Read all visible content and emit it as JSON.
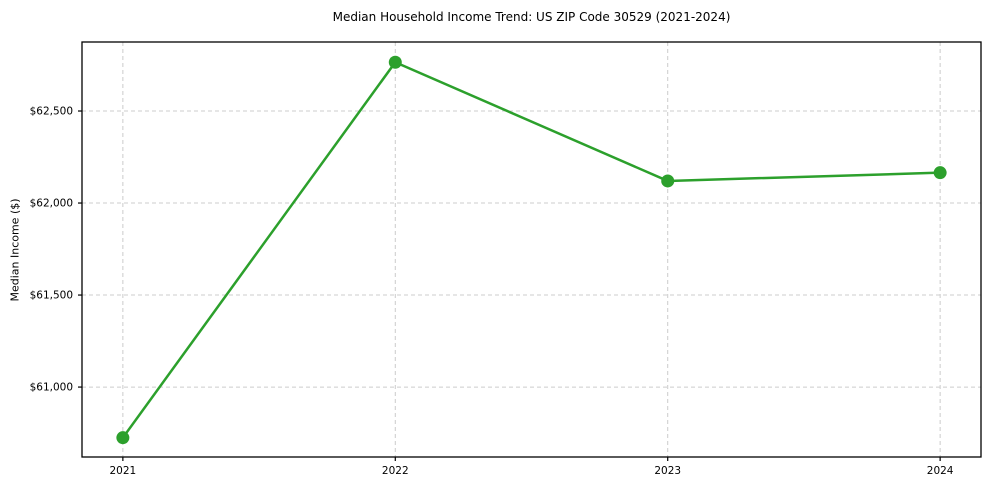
{
  "chart_data": {
    "type": "line",
    "title": "Median Household Income Trend: US ZIP Code 30529 (2021-2024)",
    "xlabel": "",
    "ylabel": "Median Income ($)",
    "x": [
      2021,
      2022,
      2023,
      2024
    ],
    "series": [
      {
        "name": "Median Household Income",
        "values": [
          60725,
          62765,
          62120,
          62165
        ]
      }
    ],
    "xticks": [
      2021,
      2022,
      2023,
      2024
    ],
    "xtick_labels": [
      "2021",
      "2022",
      "2023",
      "2024"
    ],
    "yticks": [
      61000,
      61500,
      62000,
      62500
    ],
    "ytick_labels": [
      "$61,000",
      "$61,500",
      "$62,000",
      "$62,500"
    ],
    "xlim": [
      2020.85,
      2024.15
    ],
    "ylim": [
      60620,
      62875
    ],
    "grid": true,
    "grid_style": "dashed",
    "legend": "none",
    "colors": {
      "line": "#2ca02c",
      "marker": "#2ca02c",
      "grid": "#cccccc",
      "axis": "#000000",
      "background": "#ffffff"
    },
    "marker_shape": "circle"
  }
}
